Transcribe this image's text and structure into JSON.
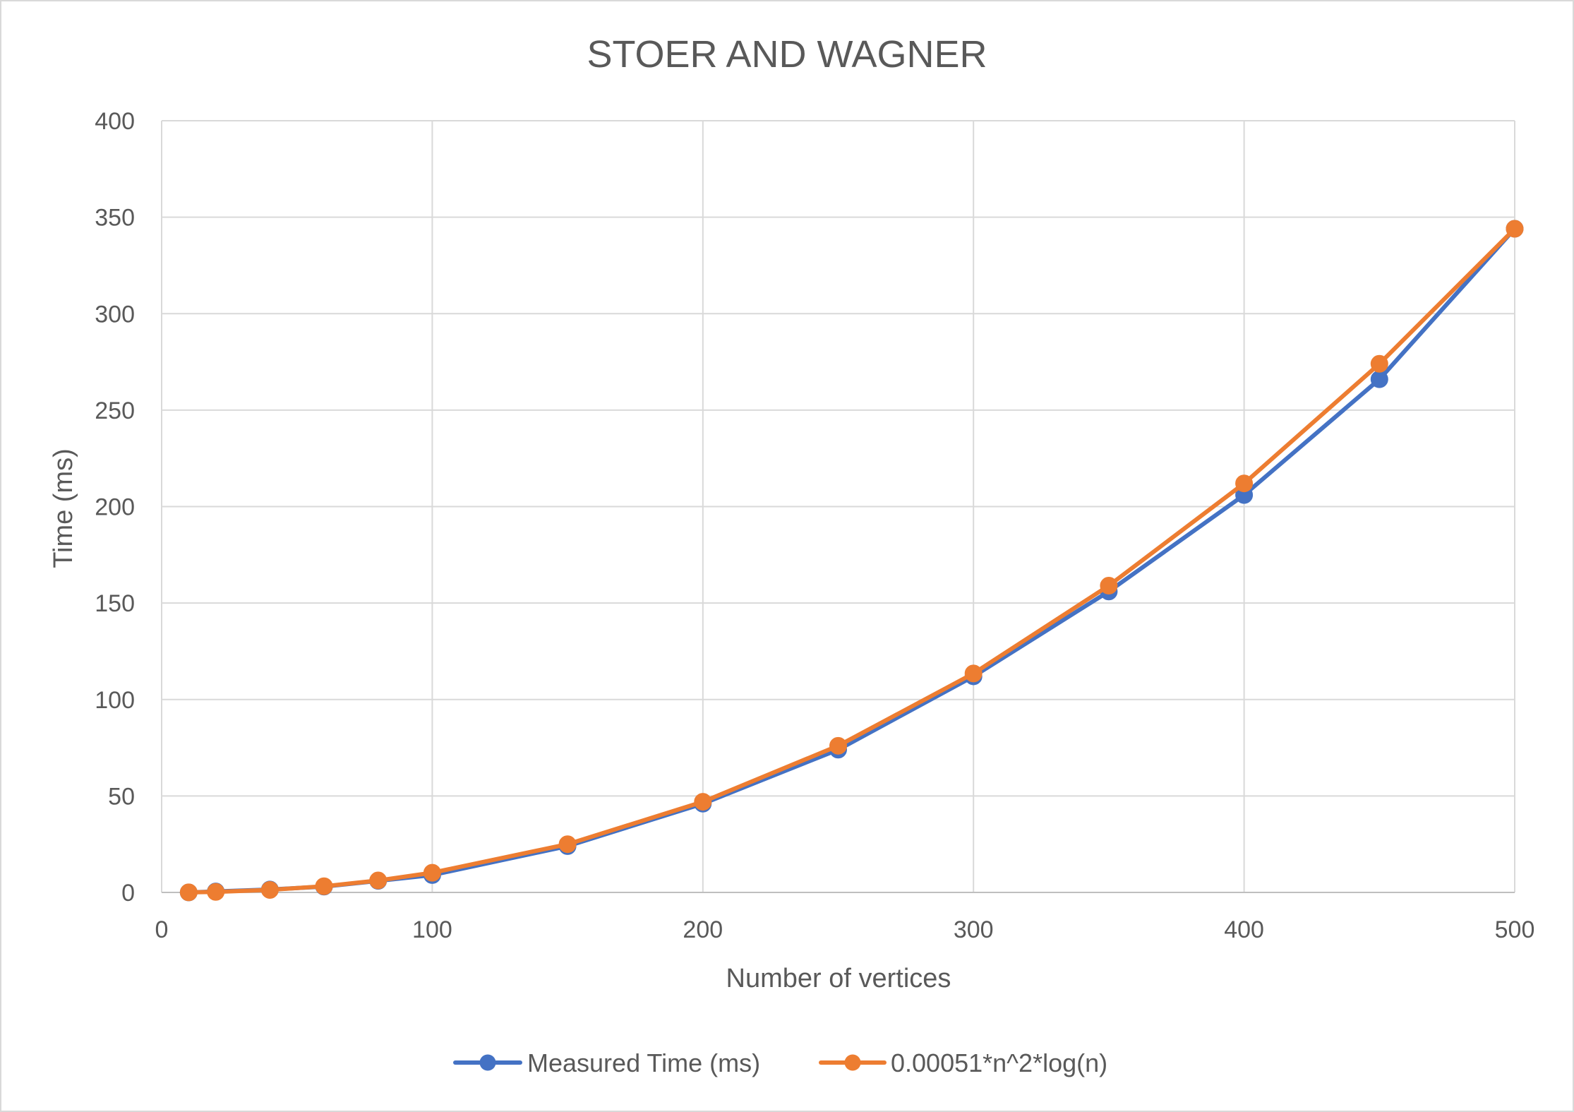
{
  "chart_data": {
    "type": "line",
    "title": "STOER AND WAGNER",
    "xlabel": "Number of vertices",
    "ylabel": "Time (ms)",
    "xlim": [
      0,
      500
    ],
    "ylim": [
      0,
      400
    ],
    "xticks": [
      0,
      100,
      200,
      300,
      400,
      500
    ],
    "yticks": [
      0,
      50,
      100,
      150,
      200,
      250,
      300,
      350,
      400
    ],
    "grid": true,
    "legend": "bottom",
    "x": [
      10,
      20,
      40,
      60,
      80,
      100,
      150,
      200,
      250,
      300,
      350,
      400,
      450,
      500
    ],
    "series": [
      {
        "name": "Measured Time (ms)",
        "color": "#4472C4",
        "values": [
          0,
          0.5,
          1.5,
          3,
          6,
          9,
          24,
          46,
          74,
          112,
          156,
          206,
          266,
          344
        ]
      },
      {
        "name": "0.00051*n^2*log(n)",
        "color": "#ED7D31",
        "values": [
          0.05,
          0.26,
          1.3,
          3.2,
          6.2,
          10.2,
          25,
          47,
          76,
          113.5,
          159,
          212,
          274,
          344
        ]
      }
    ]
  }
}
